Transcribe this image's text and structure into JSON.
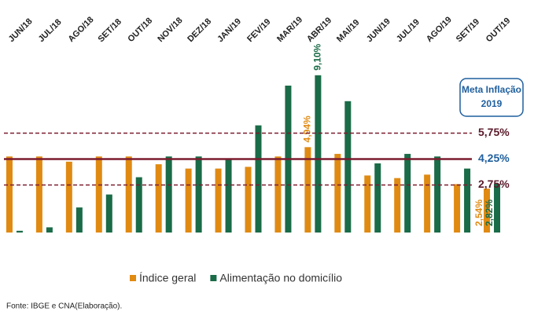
{
  "chart_data": {
    "type": "bar",
    "categories": [
      "JUN/18",
      "JUL/18",
      "AGO/18",
      "SET/18",
      "OUT/18",
      "NOV/18",
      "DEZ/18",
      "JAN/19",
      "FEV/19",
      "MAR/19",
      "ABR/19",
      "MAI/19",
      "JUN/19",
      "JUL/19",
      "AGO/19",
      "SET/19",
      "OUT/19"
    ],
    "series": [
      {
        "name": "Índice geral",
        "color": "#e08a12",
        "values": [
          4.4,
          4.4,
          4.1,
          4.4,
          4.4,
          3.95,
          3.7,
          3.7,
          3.8,
          4.4,
          4.94,
          4.55,
          3.3,
          3.15,
          3.35,
          2.8,
          2.54
        ],
        "value_labels": [
          null,
          null,
          null,
          null,
          null,
          null,
          null,
          null,
          null,
          null,
          "4,94%",
          null,
          null,
          null,
          null,
          null,
          "2,54%"
        ]
      },
      {
        "name": "Alimentação no domicílio",
        "color": "#1a6b47",
        "values": [
          0.1,
          0.3,
          1.45,
          2.2,
          3.2,
          4.4,
          4.4,
          4.25,
          6.2,
          8.5,
          9.1,
          7.6,
          4.0,
          4.55,
          4.4,
          3.7,
          2.82
        ],
        "value_labels": [
          null,
          null,
          null,
          null,
          null,
          null,
          null,
          null,
          null,
          null,
          "9,10%",
          null,
          null,
          null,
          null,
          null,
          "2,82%"
        ]
      }
    ],
    "ylim": [
      0,
      10
    ],
    "reference_lines": [
      {
        "value": 5.75,
        "label": "5,75%",
        "color": "#7b1c2e",
        "label_color": "#5a1a2a",
        "dashed": true
      },
      {
        "value": 4.25,
        "label": "4,25%",
        "color": "#7b1c2e",
        "label_color": "#1f5f9e",
        "dashed": false
      },
      {
        "value": 2.75,
        "label": "2,75%",
        "color": "#7b1c2e",
        "label_color": "#5a1a2a",
        "dashed": true
      }
    ],
    "annotation": [
      "Meta Inflação",
      "2019"
    ],
    "source": "Fonte: IBGE e  CNA(Elaboração)."
  }
}
